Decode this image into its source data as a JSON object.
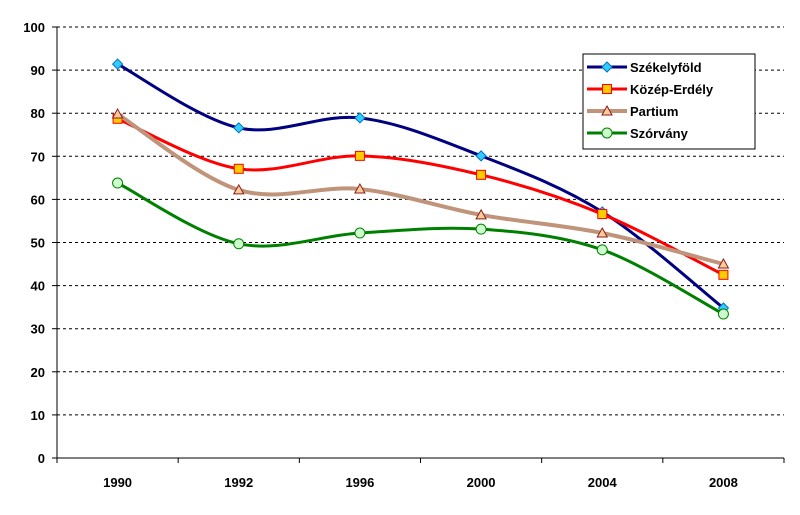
{
  "chart_data": {
    "type": "line",
    "title": "",
    "xlabel": "",
    "ylabel": "",
    "categories": [
      "1990",
      "1992",
      "1996",
      "2000",
      "2004",
      "2008"
    ],
    "ylim": [
      0,
      100
    ],
    "yticks": [
      0,
      10,
      20,
      30,
      40,
      50,
      60,
      70,
      80,
      90,
      100
    ],
    "grid": true,
    "legend_position": "top-right",
    "series": [
      {
        "name": "Székelyföld",
        "color": "#000080",
        "marker": "diamond",
        "marker_color": "#33CCFF",
        "values": [
          91.4,
          76.6,
          78.9,
          70.1,
          57.1,
          34.8
        ]
      },
      {
        "name": "Közép-Erdély",
        "color": "#FF0000",
        "marker": "square",
        "marker_color": "#FFCC00",
        "values": [
          78.7,
          67.1,
          70.1,
          65.7,
          56.6,
          42.5
        ]
      },
      {
        "name": "Partium",
        "color": "#C0947A",
        "marker": "triangle",
        "marker_color": "#FFCC99",
        "values": [
          79.8,
          62.2,
          62.4,
          56.4,
          52.2,
          45.0
        ]
      },
      {
        "name": "Szórvány",
        "color": "#008000",
        "marker": "circle",
        "marker_color": "#CCFFCC",
        "values": [
          63.8,
          49.7,
          52.2,
          53.1,
          48.3,
          33.4
        ]
      }
    ]
  }
}
